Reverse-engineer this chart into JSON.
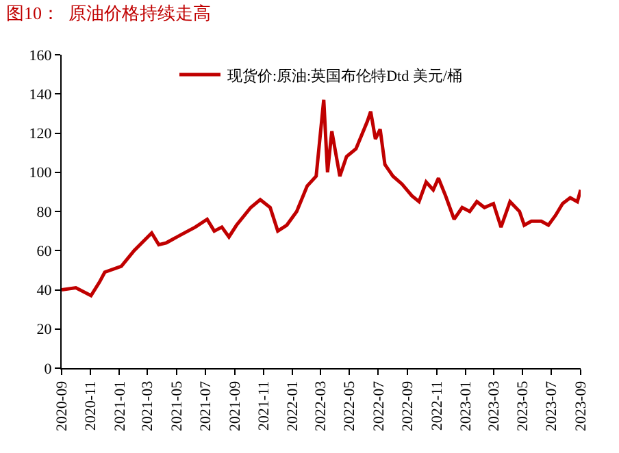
{
  "chart_data": {
    "type": "line",
    "title": "图10：  原油价格持续走高",
    "x": [
      "2020-09-01",
      "2020-10-01",
      "2020-11-02",
      "2020-11-20",
      "2020-12-01",
      "2021-01-05",
      "2021-02-01",
      "2021-03-10",
      "2021-03-25",
      "2021-04-10",
      "2021-05-10",
      "2021-06-10",
      "2021-07-05",
      "2021-07-20",
      "2021-08-05",
      "2021-08-20",
      "2021-09-05",
      "2021-10-05",
      "2021-10-25",
      "2021-11-15",
      "2021-12-01",
      "2021-12-20",
      "2022-01-10",
      "2022-02-01",
      "2022-02-20",
      "2022-03-08",
      "2022-03-16",
      "2022-03-25",
      "2022-04-11",
      "2022-04-25",
      "2022-05-15",
      "2022-06-08",
      "2022-06-15",
      "2022-06-25",
      "2022-07-05",
      "2022-07-15",
      "2022-08-01",
      "2022-08-20",
      "2022-09-10",
      "2022-09-25",
      "2022-10-10",
      "2022-10-25",
      "2022-11-05",
      "2022-11-20",
      "2022-12-08",
      "2022-12-25",
      "2023-01-10",
      "2023-01-25",
      "2023-02-10",
      "2023-03-01",
      "2023-03-17",
      "2023-04-05",
      "2023-04-25",
      "2023-05-05",
      "2023-05-20",
      "2023-06-10",
      "2023-06-25",
      "2023-07-10",
      "2023-07-25",
      "2023-08-10",
      "2023-08-25",
      "2023-09-01"
    ],
    "series": [
      {
        "name": "现货价:原油:英国布伦特Dtd 美元/桶",
        "color": "#c00000",
        "values": [
          40,
          41,
          37,
          44,
          49,
          52,
          60,
          69,
          63,
          64,
          68,
          72,
          76,
          70,
          72,
          67,
          73,
          82,
          86,
          82,
          70,
          73,
          80,
          93,
          98,
          137,
          100,
          121,
          98,
          108,
          112,
          126,
          131,
          117,
          122,
          104,
          98,
          94,
          88,
          85,
          95,
          91,
          97,
          88,
          76,
          82,
          80,
          85,
          82,
          84,
          72,
          85,
          80,
          73,
          75,
          75,
          73,
          78,
          84,
          87,
          85,
          91
        ]
      }
    ],
    "xlim": [
      "2020-09-01",
      "2023-09-01"
    ],
    "xticks": [
      "2020-09",
      "2020-11",
      "2021-01",
      "2021-03",
      "2021-05",
      "2021-07",
      "2021-09",
      "2021-11",
      "2022-01",
      "2022-03",
      "2022-05",
      "2022-07",
      "2022-09",
      "2022-11",
      "2023-01",
      "2023-03",
      "2023-05",
      "2023-07",
      "2023-09"
    ],
    "ylim": [
      0,
      160
    ],
    "yticks": [
      0,
      20,
      40,
      60,
      80,
      100,
      120,
      140,
      160
    ],
    "legend": "top",
    "marker": "none",
    "line_style": "solid"
  }
}
